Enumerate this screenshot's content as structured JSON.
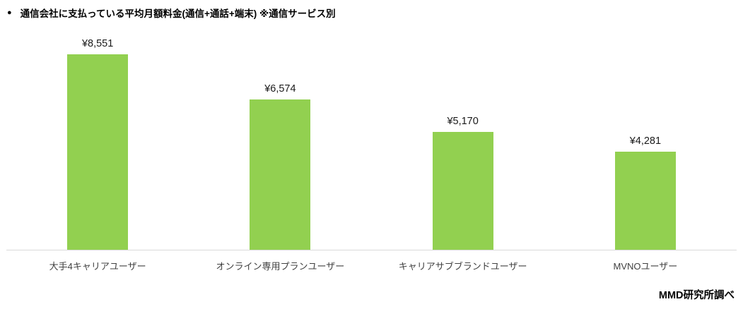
{
  "title": {
    "bullet": "●",
    "text": "通信会社に支払っている平均月額料金(通信+通話+端末) ※通信サービス別"
  },
  "footer": {
    "source": "MMD研究所調べ"
  },
  "chart_data": {
    "type": "bar",
    "title": "通信会社に支払っている平均月額料金(通信+通話+端末) ※通信サービス別",
    "categories": [
      "大手4キャリアユーザー",
      "オンライン専用プランユーザー",
      "キャリアサブブランドユーザー",
      "MVNOユーザー"
    ],
    "values": [
      8551,
      6574,
      5170,
      4281
    ],
    "value_labels": [
      "¥8,551",
      "¥6,574",
      "¥5,170",
      "¥4,281"
    ],
    "currency": "JPY",
    "xlabel": "",
    "ylabel": "",
    "ylim": [
      0,
      9000
    ],
    "grid": false,
    "legend": false,
    "y_axis_visible": false,
    "bar_color": "#92d050",
    "axis_line_color": "#d9d9d9",
    "source": "MMD研究所調べ"
  }
}
